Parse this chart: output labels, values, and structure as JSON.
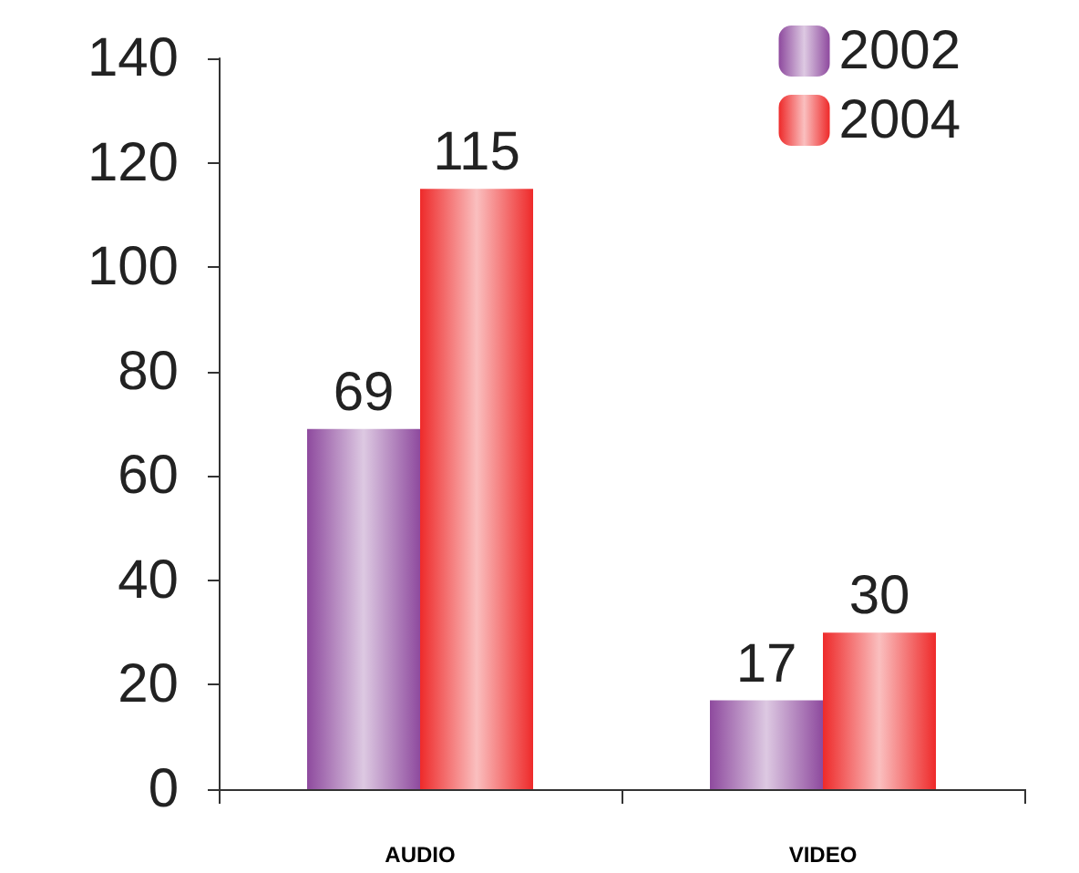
{
  "chart_data": {
    "type": "bar",
    "categories": [
      "AUDIO",
      "VIDEO"
    ],
    "series": [
      {
        "name": "2002",
        "color": "#8e4a9e",
        "values": [
          69,
          17
        ]
      },
      {
        "name": "2004",
        "color": "#ee2a2a",
        "values": [
          115,
          30
        ]
      }
    ],
    "ylim": [
      0,
      140
    ],
    "yticks": [
      0,
      20,
      40,
      60,
      80,
      100,
      120,
      140
    ],
    "grid": false,
    "legend": "top right",
    "data_labels": true
  }
}
